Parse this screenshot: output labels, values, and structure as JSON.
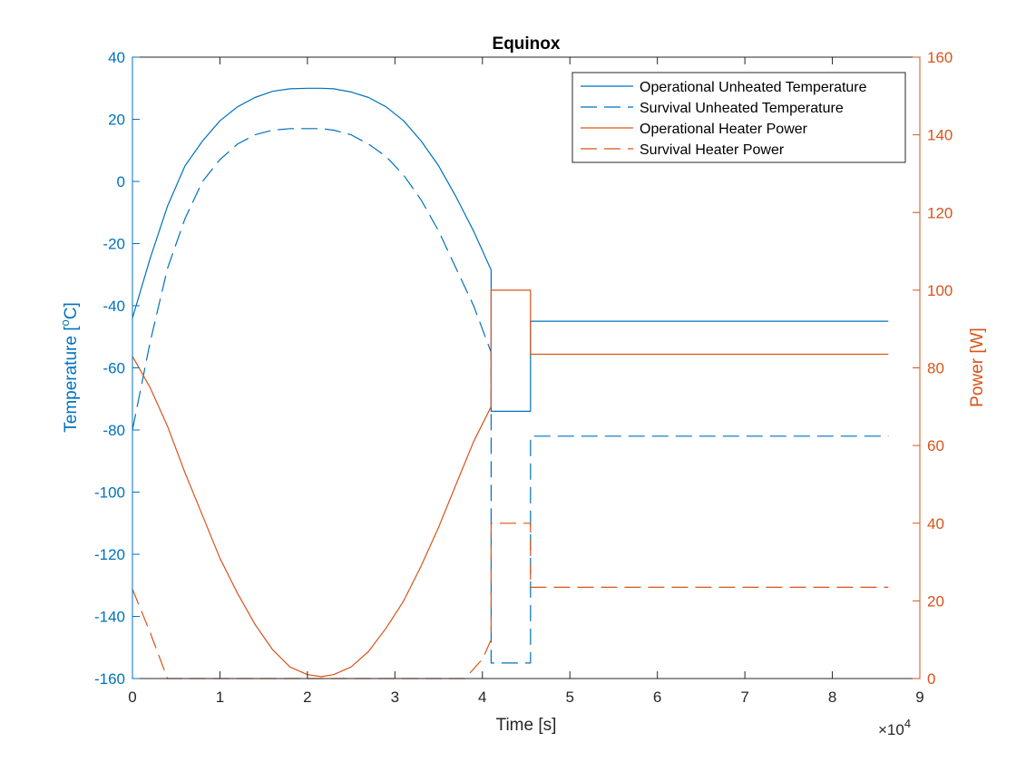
{
  "chart_data": {
    "type": "line",
    "title": "Equinox",
    "xlabel": "Time [s]",
    "x_exponent_label": "×10",
    "x_exponent_power": "4",
    "ylabel_left_base": "Temperature [",
    "ylabel_left_sup": "o",
    "ylabel_left_end": "C]",
    "ylabel_right": "Power [W]",
    "xlim": [
      0,
      90000
    ],
    "ylim_left": [
      -160,
      40
    ],
    "ylim_right": [
      0,
      160
    ],
    "x_ticks": [
      0,
      10000,
      20000,
      30000,
      40000,
      50000,
      60000,
      70000,
      80000,
      90000
    ],
    "x_tick_labels": [
      "0",
      "1",
      "2",
      "3",
      "4",
      "5",
      "6",
      "7",
      "8",
      "9"
    ],
    "y_left_ticks": [
      40,
      20,
      0,
      -20,
      -40,
      -60,
      -80,
      -100,
      -120,
      -140,
      -160
    ],
    "y_left_tick_labels": [
      "40",
      "20",
      "0",
      "-20",
      "-40",
      "-60",
      "-80",
      "-100",
      "-120",
      "-140",
      "-160"
    ],
    "y_right_ticks": [
      160,
      140,
      120,
      100,
      80,
      60,
      40,
      20,
      0
    ],
    "y_right_tick_labels": [
      "160",
      "140",
      "120",
      "100",
      "80",
      "60",
      "40",
      "20",
      "0"
    ],
    "grid": false,
    "legend_position": "top-right",
    "colors": {
      "left_axis": "#0072bd",
      "right_axis": "#d95319"
    },
    "series": [
      {
        "name": "Operational Unheated Temperature",
        "axis": "left",
        "style": "solid",
        "color": "#0072bd",
        "x": [
          0,
          2000,
          4000,
          6000,
          8000,
          10000,
          12000,
          14000,
          16000,
          18000,
          20000,
          21600,
          23000,
          25000,
          27000,
          29000,
          31000,
          33000,
          35000,
          37000,
          39000,
          41000,
          41000,
          45500,
          45500,
          86400
        ],
        "y": [
          -44,
          -25,
          -8,
          5,
          13,
          19.5,
          24,
          27,
          29,
          29.8,
          30,
          30,
          29.8,
          28.8,
          27,
          24,
          19.5,
          13,
          5,
          -5,
          -16,
          -28.5,
          -74,
          -74,
          -45,
          -45
        ]
      },
      {
        "name": "Survival Unheated Temperature",
        "axis": "left",
        "style": "dashed",
        "color": "#0072bd",
        "x": [
          0,
          2000,
          4000,
          6000,
          8000,
          10000,
          12000,
          14000,
          16000,
          18000,
          20000,
          21600,
          23000,
          25000,
          27000,
          29000,
          31000,
          33000,
          35000,
          37000,
          39000,
          41000,
          41000,
          45500,
          45500,
          86400
        ],
        "y": [
          -80,
          -52,
          -28,
          -12,
          0,
          7,
          12,
          15,
          16.5,
          17,
          17,
          17,
          16.5,
          15,
          12,
          8,
          2,
          -6,
          -16,
          -28,
          -40,
          -55,
          -155,
          -155,
          -82,
          -82
        ]
      },
      {
        "name": "Operational Heater Power",
        "axis": "right",
        "style": "solid",
        "color": "#d95319",
        "x": [
          0,
          2000,
          4000,
          6000,
          8000,
          10000,
          12000,
          14000,
          16000,
          18000,
          20000,
          21600,
          23000,
          25000,
          27000,
          29000,
          31000,
          33000,
          35000,
          37000,
          39000,
          41000,
          41000,
          45500,
          45500,
          86400
        ],
        "y": [
          83,
          75,
          65,
          53,
          42,
          31,
          22,
          14,
          7.5,
          3,
          1,
          0.5,
          1,
          3,
          7,
          13,
          20,
          29,
          39,
          50,
          61,
          70,
          100,
          100,
          83.5,
          83.5
        ]
      },
      {
        "name": "Survival Heater Power",
        "axis": "right",
        "style": "dashed",
        "color": "#d95319",
        "x": [
          0,
          2000,
          4000,
          10000,
          20000,
          30000,
          38000,
          40000,
          41000,
          41000,
          45500,
          45500,
          86400
        ],
        "y": [
          23,
          12,
          0,
          0,
          0,
          0,
          0,
          5,
          10,
          40,
          40,
          23.5,
          23.5
        ]
      }
    ]
  }
}
